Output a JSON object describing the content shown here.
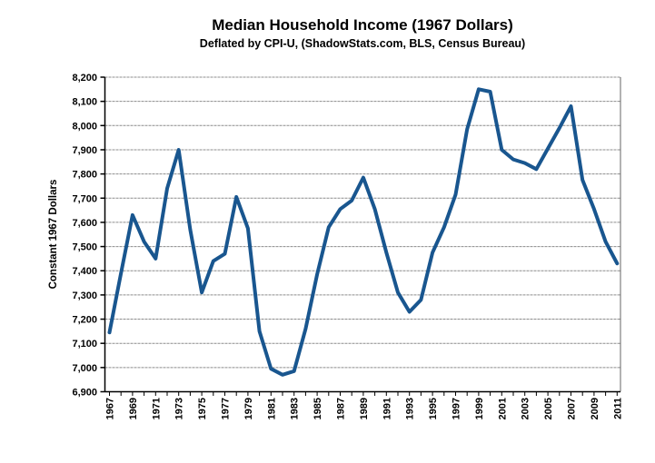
{
  "header": {
    "title": "Median Household Income (1967 Dollars)",
    "subtitle": "Deflated by CPI-U, (ShadowStats.com, BLS, Census Bureau)"
  },
  "chart_data": {
    "type": "line",
    "title": "Median Household Income (1967 Dollars)",
    "subtitle": "Deflated by CPI-U, (ShadowStats.com, BLS, Census Bureau)",
    "xlabel": "",
    "ylabel": "Constant 1967 Dollars",
    "ylim": [
      6900,
      8200
    ],
    "ytick_step": 100,
    "yticks": [
      "6,900",
      "7,000",
      "7,100",
      "7,200",
      "7,300",
      "7,400",
      "7,500",
      "7,600",
      "7,700",
      "7,800",
      "7,900",
      "8,000",
      "8,100",
      "8,200"
    ],
    "xticks": [
      "1967",
      "1969",
      "1971",
      "1973",
      "1975",
      "1977",
      "1979",
      "1981",
      "1983",
      "1985",
      "1987",
      "1989",
      "1991",
      "1993",
      "1995",
      "1997",
      "1999",
      "2001",
      "2003",
      "2005",
      "2007",
      "2009",
      "2011"
    ],
    "x": [
      1967,
      1968,
      1969,
      1970,
      1971,
      1972,
      1973,
      1974,
      1975,
      1976,
      1977,
      1978,
      1979,
      1980,
      1981,
      1982,
      1983,
      1984,
      1985,
      1986,
      1987,
      1988,
      1989,
      1990,
      1991,
      1992,
      1993,
      1994,
      1995,
      1996,
      1997,
      1998,
      1999,
      2000,
      2001,
      2002,
      2003,
      2004,
      2005,
      2006,
      2007,
      2008,
      2009,
      2010,
      2011
    ],
    "values": [
      7145,
      7390,
      7630,
      7520,
      7450,
      7740,
      7900,
      7570,
      7310,
      7440,
      7470,
      7705,
      7575,
      7150,
      6995,
      6970,
      6985,
      7160,
      7385,
      7580,
      7655,
      7690,
      7785,
      7655,
      7475,
      7310,
      7230,
      7280,
      7475,
      7580,
      7715,
      7985,
      8150,
      8140,
      7900,
      7860,
      7845,
      7820,
      7905,
      7990,
      8080,
      7775,
      7655,
      7520,
      7430
    ],
    "grid": true,
    "legend_position": "none",
    "line_color": "#19568f",
    "grid_color": "#8c8c8c",
    "axis_color": "#000000",
    "border_color": "#666666"
  }
}
